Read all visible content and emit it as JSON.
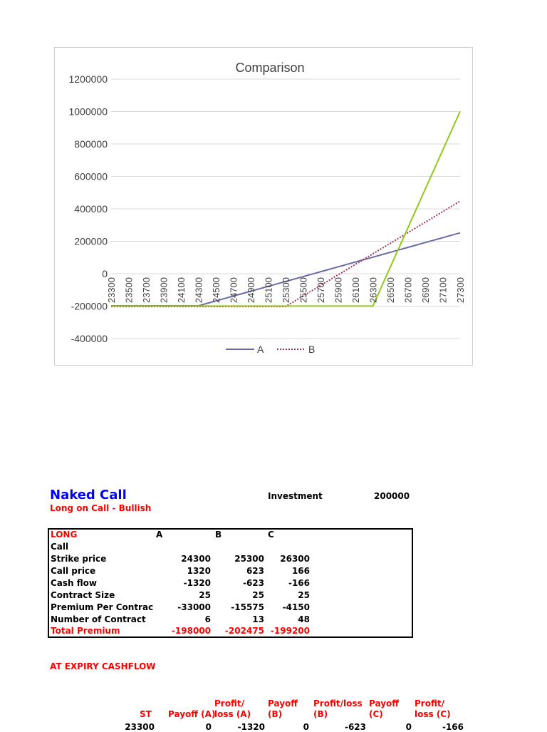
{
  "chart_data": {
    "type": "line",
    "title": "Comparison",
    "xlabel": "",
    "ylabel": "",
    "ylim": [
      -400000,
      1200000
    ],
    "yticks": [
      1200000,
      1000000,
      800000,
      600000,
      400000,
      200000,
      0,
      -200000,
      -400000
    ],
    "grid": true,
    "legend": "bottom",
    "categories": [
      23300,
      23400,
      23500,
      23600,
      23700,
      23800,
      23900,
      24000,
      24100,
      24200,
      24300,
      24400,
      24500,
      24600,
      24700,
      24800,
      24900,
      25000,
      25100,
      25200,
      25300,
      25400,
      25500,
      25600,
      25700,
      25800,
      25900,
      26000,
      26100,
      26200,
      26300,
      26400,
      26500,
      26600,
      26700,
      26800,
      26900,
      27000,
      27100,
      27200,
      27300
    ],
    "xtick_labels": [
      "23300",
      "23500",
      "23700",
      "23900",
      "24100",
      "24300",
      "24500",
      "24700",
      "24900",
      "25100",
      "25300",
      "25500",
      "25700",
      "25900",
      "26100",
      "26300",
      "26500",
      "26700",
      "26900",
      "27100",
      "27300"
    ],
    "series": [
      {
        "name": "A",
        "color": "#6b6ba8",
        "dash": "solid",
        "values": [
          -198000,
          -198000,
          -198000,
          -198000,
          -198000,
          -198000,
          -198000,
          -198000,
          -198000,
          -198000,
          -198000,
          -183000,
          -168000,
          -153000,
          -138000,
          -123000,
          -108000,
          -93000,
          -78000,
          -63000,
          -48000,
          -33000,
          -18000,
          -3000,
          12000,
          27000,
          42000,
          57000,
          72000,
          87000,
          102000,
          117000,
          132000,
          147000,
          162000,
          177000,
          192000,
          207000,
          222000,
          237000,
          252000
        ]
      },
      {
        "name": "B",
        "color": "#a3325f",
        "dash": "dotted",
        "values": [
          -202475,
          -202475,
          -202475,
          -202475,
          -202475,
          -202475,
          -202475,
          -202475,
          -202475,
          -202475,
          -202475,
          -202475,
          -202475,
          -202475,
          -202475,
          -202475,
          -202475,
          -202475,
          -202475,
          -202475,
          -202475,
          -169975,
          -137475,
          -104975,
          -72475,
          -39975,
          -7475,
          25025,
          57525,
          90025,
          122525,
          155025,
          187525,
          220025,
          252525,
          285025,
          317525,
          350025,
          382525,
          415025,
          447525
        ]
      },
      {
        "color": "#92c91a",
        "dash": "solid",
        "values": [
          -199200,
          -199200,
          -199200,
          -199200,
          -199200,
          -199200,
          -199200,
          -199200,
          -199200,
          -199200,
          -199200,
          -199200,
          -199200,
          -199200,
          -199200,
          -199200,
          -199200,
          -199200,
          -199200,
          -199200,
          -199200,
          -199200,
          -199200,
          -199200,
          -199200,
          -199200,
          -199200,
          -199200,
          -199200,
          -199200,
          -199200,
          -79200,
          40800,
          160800,
          280800,
          400800,
          520800,
          640800,
          760800,
          880800,
          1000800
        ]
      }
    ]
  },
  "sheet": {
    "title": "Naked Call",
    "subtitle": "Long on Call - Bullish",
    "investment_label": "Investment",
    "investment_value": "200000",
    "table": {
      "header": {
        "label": "LONG",
        "a": "A",
        "b": "B",
        "c": "C"
      },
      "rows": [
        {
          "label": "Call",
          "a": "",
          "b": "",
          "c": ""
        },
        {
          "label": "Strike price",
          "a": "24300",
          "b": "25300",
          "c": "26300"
        },
        {
          "label": "Call price",
          "a": "1320",
          "b": "623",
          "c": "166"
        },
        {
          "label": "Cash flow",
          "a": "-1320",
          "b": "-623",
          "c": "-166"
        },
        {
          "label": "Contract Size",
          "a": "25",
          "b": "25",
          "c": "25"
        },
        {
          "label": "Premium Per Contrac",
          "a": "-33000",
          "b": "-15575",
          "c": "-4150"
        },
        {
          "label": "Number of Contract",
          "a": "6",
          "b": "13",
          "c": "48"
        }
      ],
      "total": {
        "label": "Total Premium",
        "a": "-198000",
        "b": "-202475",
        "c": "-199200"
      }
    },
    "expiry_title": "AT EXPIRY CASHFLOW",
    "expiry_headers": [
      "ST",
      "Payoff (A)",
      "Profit/\nloss (A)",
      "Payoff\n(B)",
      "Profit/loss\n(B)",
      "Payoff\n(C)",
      "Profit/\nloss (C)"
    ],
    "expiry_rows": [
      [
        "23300",
        "0",
        "-1320",
        "0",
        "-623",
        "0",
        "-166"
      ]
    ]
  }
}
